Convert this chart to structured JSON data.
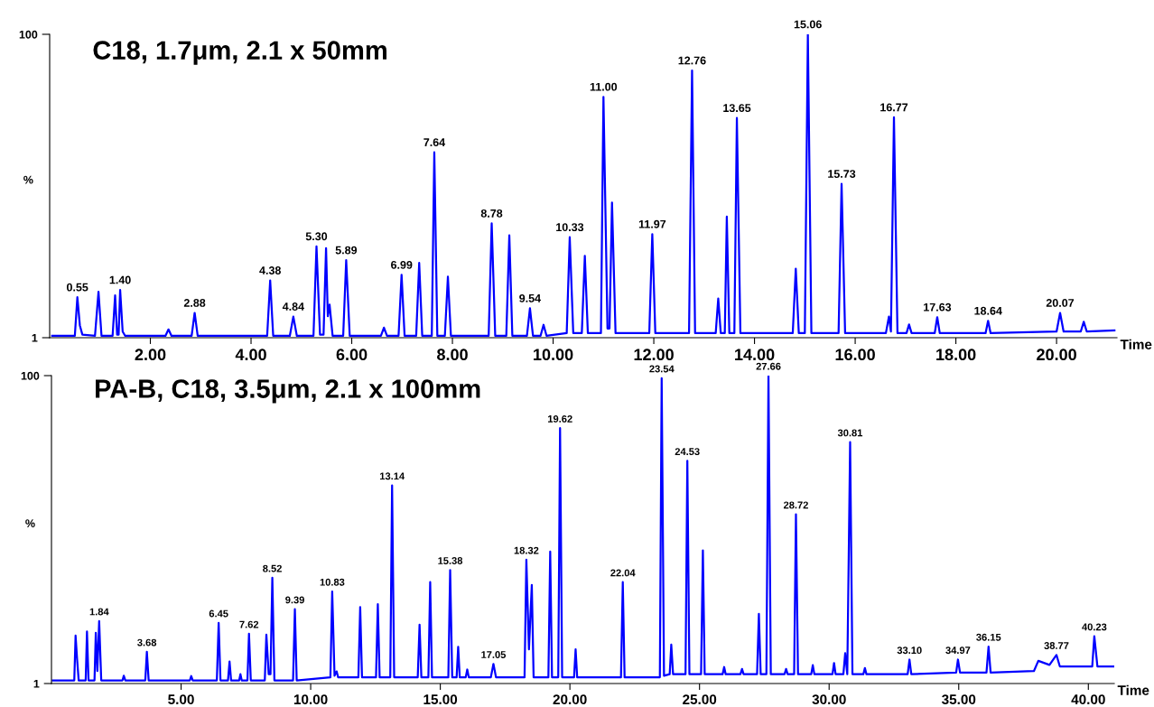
{
  "chart_data": [
    {
      "type": "line",
      "title": "C18, 1.7μm, 2.1 x 50mm",
      "xlabel": "Time",
      "ylabel": "%",
      "xlim": [
        0,
        21.2
      ],
      "ylim": [
        1,
        100
      ],
      "xticks": [
        {
          "value": 2,
          "label": "2.00"
        },
        {
          "value": 4,
          "label": "4.00"
        },
        {
          "value": 6,
          "label": "6.00"
        },
        {
          "value": 8,
          "label": "8.00"
        },
        {
          "value": 10,
          "label": "10.00"
        },
        {
          "value": 12,
          "label": "12.00"
        },
        {
          "value": 14,
          "label": "14.00"
        },
        {
          "value": 16,
          "label": "16.00"
        },
        {
          "value": 18,
          "label": "18.00"
        },
        {
          "value": 20,
          "label": "20.00"
        }
      ],
      "yticks": [
        1,
        100
      ],
      "x": [
        0.05,
        0.5,
        0.55,
        0.6,
        0.65,
        0.9,
        0.97,
        1.03,
        1.25,
        1.3,
        1.34,
        1.37,
        1.4,
        1.45,
        1.5,
        2.3,
        2.36,
        2.42,
        2.82,
        2.88,
        2.94,
        4.32,
        4.38,
        4.44,
        4.77,
        4.84,
        4.91,
        5.24,
        5.3,
        5.37,
        5.44,
        5.49,
        5.525,
        5.56,
        5.62,
        5.83,
        5.89,
        5.96,
        6.58,
        6.64,
        6.7,
        6.93,
        6.99,
        7.05,
        7.28,
        7.34,
        7.4,
        7.59,
        7.64,
        7.7,
        7.85,
        7.91,
        7.97,
        8.72,
        8.78,
        8.85,
        9.07,
        9.13,
        9.19,
        9.48,
        9.54,
        9.6,
        9.75,
        9.81,
        9.87,
        10.27,
        10.33,
        10.4,
        10.57,
        10.63,
        10.69,
        10.95,
        11.0,
        11.08,
        11.12,
        11.17,
        11.24,
        11.91,
        11.97,
        12.03,
        12.7,
        12.76,
        12.82,
        13.23,
        13.28,
        13.33,
        13.41,
        13.45,
        13.5,
        13.6,
        13.65,
        13.72,
        14.76,
        14.82,
        14.88,
        15.0,
        15.06,
        15.13,
        15.67,
        15.73,
        15.8,
        16.61,
        16.67,
        16.71,
        16.77,
        16.84,
        17.02,
        17.07,
        17.12,
        17.58,
        17.63,
        17.68,
        18.59,
        18.64,
        18.69,
        20.0,
        20.07,
        20.14,
        20.48,
        20.54,
        20.6,
        21.15
      ],
      "series": [
        {
          "color": "#0000ff",
          "values": [
            1.6,
            1.6,
            14.2,
            5,
            2,
            1.6,
            16,
            1.6,
            1.6,
            14.8,
            2,
            2,
            16.6,
            3,
            1.6,
            1.6,
            3.7,
            1.6,
            1.6,
            9.1,
            1.6,
            1.6,
            19.7,
            1.6,
            1.6,
            7.9,
            1.6,
            1.6,
            30.8,
            2,
            2,
            30.2,
            8,
            11.8,
            1.6,
            1.6,
            26.3,
            1.6,
            1.6,
            4.3,
            1.6,
            1.6,
            21.5,
            1.6,
            1.6,
            25.4,
            1.6,
            1.6,
            61.5,
            1.6,
            1.6,
            20.9,
            1.6,
            1.6,
            38.3,
            1.6,
            1.6,
            34.4,
            1.6,
            1.6,
            10.6,
            1.6,
            1.6,
            5.2,
            1.6,
            2.5,
            33.8,
            2.5,
            2.5,
            27.7,
            2.5,
            2.5,
            79.6,
            4,
            4,
            45.1,
            2.5,
            2.5,
            34.8,
            2.5,
            2.5,
            88.2,
            2.5,
            2.5,
            13.8,
            2.5,
            2.5,
            40.5,
            2.5,
            2.5,
            72.7,
            2.5,
            2.5,
            23.5,
            2.5,
            2.5,
            100,
            2.5,
            2.5,
            51.2,
            2.5,
            2.5,
            7.9,
            3,
            72.9,
            2.5,
            2.5,
            5.3,
            2.5,
            2.5,
            7.7,
            2.5,
            2.5,
            6.5,
            2.5,
            3,
            9.1,
            3,
            3,
            6.2,
            3,
            3.4
          ]
        }
      ],
      "annotations": [
        {
          "text": "0.55",
          "x": 0.55,
          "y": 14.2
        },
        {
          "text": "1.40",
          "x": 1.4,
          "y": 16.6
        },
        {
          "text": "2.88",
          "x": 2.88,
          "y": 9.1
        },
        {
          "text": "4.38",
          "x": 4.38,
          "y": 19.7
        },
        {
          "text": "4.84",
          "x": 4.84,
          "y": 7.9
        },
        {
          "text": "5.30",
          "x": 5.3,
          "y": 30.8
        },
        {
          "text": "5.89",
          "x": 5.89,
          "y": 26.3
        },
        {
          "text": "6.99",
          "x": 6.99,
          "y": 21.5
        },
        {
          "text": "7.64",
          "x": 7.64,
          "y": 61.5
        },
        {
          "text": "8.78",
          "x": 8.78,
          "y": 38.3
        },
        {
          "text": "9.54",
          "x": 9.54,
          "y": 10.6
        },
        {
          "text": "10.33",
          "x": 10.33,
          "y": 33.8
        },
        {
          "text": "11.00",
          "x": 11.0,
          "y": 79.6
        },
        {
          "text": "11.97",
          "x": 11.97,
          "y": 34.8
        },
        {
          "text": "12.76",
          "x": 12.76,
          "y": 88.2
        },
        {
          "text": "13.65",
          "x": 13.65,
          "y": 72.7
        },
        {
          "text": "15.06",
          "x": 15.06,
          "y": 100
        },
        {
          "text": "15.73",
          "x": 15.73,
          "y": 51.2
        },
        {
          "text": "16.77",
          "x": 16.77,
          "y": 72.9
        },
        {
          "text": "17.63",
          "x": 17.63,
          "y": 7.7
        },
        {
          "text": "18.64",
          "x": 18.64,
          "y": 6.5
        },
        {
          "text": "20.07",
          "x": 20.07,
          "y": 9.1
        }
      ]
    },
    {
      "type": "line",
      "title": "PA-B, C18, 3.5μm, 2.1 x 100mm",
      "xlabel": "Time",
      "ylabel": "%",
      "xlim": [
        0,
        41
      ],
      "ylim": [
        1,
        100
      ],
      "xticks": [
        {
          "value": 5,
          "label": "5.00"
        },
        {
          "value": 10,
          "label": "10.00"
        },
        {
          "value": 15,
          "label": "15.00"
        },
        {
          "value": 20,
          "label": "20.00"
        },
        {
          "value": 25,
          "label": "25.00"
        },
        {
          "value": 30,
          "label": "30.00"
        },
        {
          "value": 35,
          "label": "35.00"
        },
        {
          "value": 40,
          "label": "40.00"
        }
      ],
      "yticks": [
        1,
        100
      ],
      "x": [
        0.05,
        0.88,
        0.93,
        0.99,
        1.05,
        1.32,
        1.37,
        1.43,
        1.66,
        1.71,
        1.77,
        1.84,
        1.92,
        2.74,
        2.79,
        2.85,
        3.62,
        3.68,
        3.75,
        5.34,
        5.39,
        5.45,
        6.38,
        6.45,
        6.52,
        6.81,
        6.87,
        6.93,
        7.24,
        7.29,
        7.34,
        7.56,
        7.62,
        7.69,
        8.23,
        8.29,
        8.38,
        8.45,
        8.52,
        8.6,
        9.32,
        9.39,
        9.46,
        10.76,
        10.83,
        10.92,
        11.0,
        11.06,
        11.84,
        11.91,
        11.98,
        12.52,
        12.59,
        12.66,
        13.07,
        13.14,
        13.22,
        14.13,
        14.2,
        14.27,
        14.54,
        14.61,
        14.68,
        15.31,
        15.38,
        15.46,
        15.63,
        15.69,
        15.75,
        15.98,
        16.04,
        16.1,
        16.95,
        17.05,
        17.15,
        18.25,
        18.32,
        18.42,
        18.53,
        18.6,
        19.17,
        19.24,
        19.31,
        19.55,
        19.62,
        19.7,
        20.16,
        20.22,
        20.28,
        21.97,
        22.04,
        22.11,
        23.47,
        23.54,
        23.63,
        23.85,
        23.91,
        23.98,
        24.46,
        24.53,
        24.61,
        25.06,
        25.13,
        25.2,
        25.89,
        25.95,
        26.01,
        26.58,
        26.64,
        26.7,
        27.22,
        27.29,
        27.36,
        27.58,
        27.66,
        27.75,
        28.28,
        28.34,
        28.4,
        28.65,
        28.72,
        28.8,
        29.31,
        29.37,
        29.43,
        30.13,
        30.19,
        30.25,
        30.55,
        30.62,
        30.7,
        30.81,
        30.9,
        31.32,
        31.38,
        31.44,
        33.03,
        33.1,
        33.17,
        34.9,
        34.97,
        35.05,
        36.07,
        36.15,
        36.23,
        37.9,
        38.07,
        38.5,
        38.77,
        38.9,
        40.15,
        40.23,
        40.35,
        40.97
      ],
      "series": [
        {
          "color": "#0000ff",
          "values": [
            2,
            2,
            16.4,
            8.7,
            2,
            2,
            17.7,
            2,
            2,
            17.3,
            5,
            21.1,
            2,
            2,
            3.5,
            2,
            2,
            11.2,
            2,
            2,
            3.4,
            2,
            2,
            20.5,
            2,
            2,
            8.1,
            2,
            2,
            4.0,
            2,
            2,
            17.0,
            2,
            2,
            16.7,
            4,
            4,
            35.0,
            2,
            2,
            24.9,
            2,
            3,
            30.6,
            3.5,
            4.9,
            3,
            3,
            25.6,
            3,
            3,
            26.5,
            3,
            3,
            64.7,
            3,
            3,
            19.9,
            3,
            3,
            33.6,
            3,
            3,
            37.5,
            3,
            3,
            12.8,
            3,
            3,
            5.5,
            3,
            3,
            7.3,
            3,
            3,
            40.8,
            12,
            32.7,
            3,
            3,
            43.4,
            3,
            3,
            83.1,
            3,
            3,
            12.0,
            3,
            3,
            33.6,
            3,
            3,
            99.2,
            3.5,
            4,
            13.5,
            4,
            4,
            72.6,
            4,
            4,
            43.8,
            4,
            4,
            6.3,
            4,
            4,
            5.7,
            4,
            4,
            23.4,
            4,
            4,
            100,
            4,
            4,
            5.7,
            4,
            4,
            55.4,
            4,
            4,
            6.9,
            4,
            4,
            7.6,
            4,
            4,
            10.8,
            4,
            78.6,
            4,
            4,
            6.0,
            4,
            4,
            8.7,
            4,
            4.5,
            8.7,
            4.5,
            4.5,
            12.9,
            4.5,
            5,
            8.3,
            7,
            10.2,
            6.5,
            6.5,
            16.2,
            6.5,
            6.5
          ]
        }
      ],
      "annotations": [
        {
          "text": "1.84",
          "x": 1.84,
          "y": 21.1
        },
        {
          "text": "3.68",
          "x": 3.68,
          "y": 11.2
        },
        {
          "text": "6.45",
          "x": 6.45,
          "y": 20.5
        },
        {
          "text": "7.62",
          "x": 7.62,
          "y": 17.0
        },
        {
          "text": "8.52",
          "x": 8.52,
          "y": 35.0
        },
        {
          "text": "9.39",
          "x": 9.39,
          "y": 24.9
        },
        {
          "text": "10.83",
          "x": 10.83,
          "y": 30.6
        },
        {
          "text": "13.14",
          "x": 13.14,
          "y": 64.7
        },
        {
          "text": "15.38",
          "x": 15.38,
          "y": 37.5
        },
        {
          "text": "17.05",
          "x": 17.05,
          "y": 7.3
        },
        {
          "text": "18.32",
          "x": 18.32,
          "y": 40.8
        },
        {
          "text": "19.62",
          "x": 19.62,
          "y": 83.1
        },
        {
          "text": "22.04",
          "x": 22.04,
          "y": 33.6
        },
        {
          "text": "23.54",
          "x": 23.54,
          "y": 99.2
        },
        {
          "text": "24.53",
          "x": 24.53,
          "y": 72.6
        },
        {
          "text": "27.66",
          "x": 27.66,
          "y": 100
        },
        {
          "text": "28.72",
          "x": 28.72,
          "y": 55.4
        },
        {
          "text": "30.81",
          "x": 30.81,
          "y": 78.6
        },
        {
          "text": "33.10",
          "x": 33.1,
          "y": 8.7
        },
        {
          "text": "34.97",
          "x": 34.97,
          "y": 8.7
        },
        {
          "text": "36.15",
          "x": 36.15,
          "y": 12.9
        },
        {
          "text": "38.77",
          "x": 38.77,
          "y": 10.2
        },
        {
          "text": "40.23",
          "x": 40.23,
          "y": 16.2
        }
      ]
    }
  ]
}
